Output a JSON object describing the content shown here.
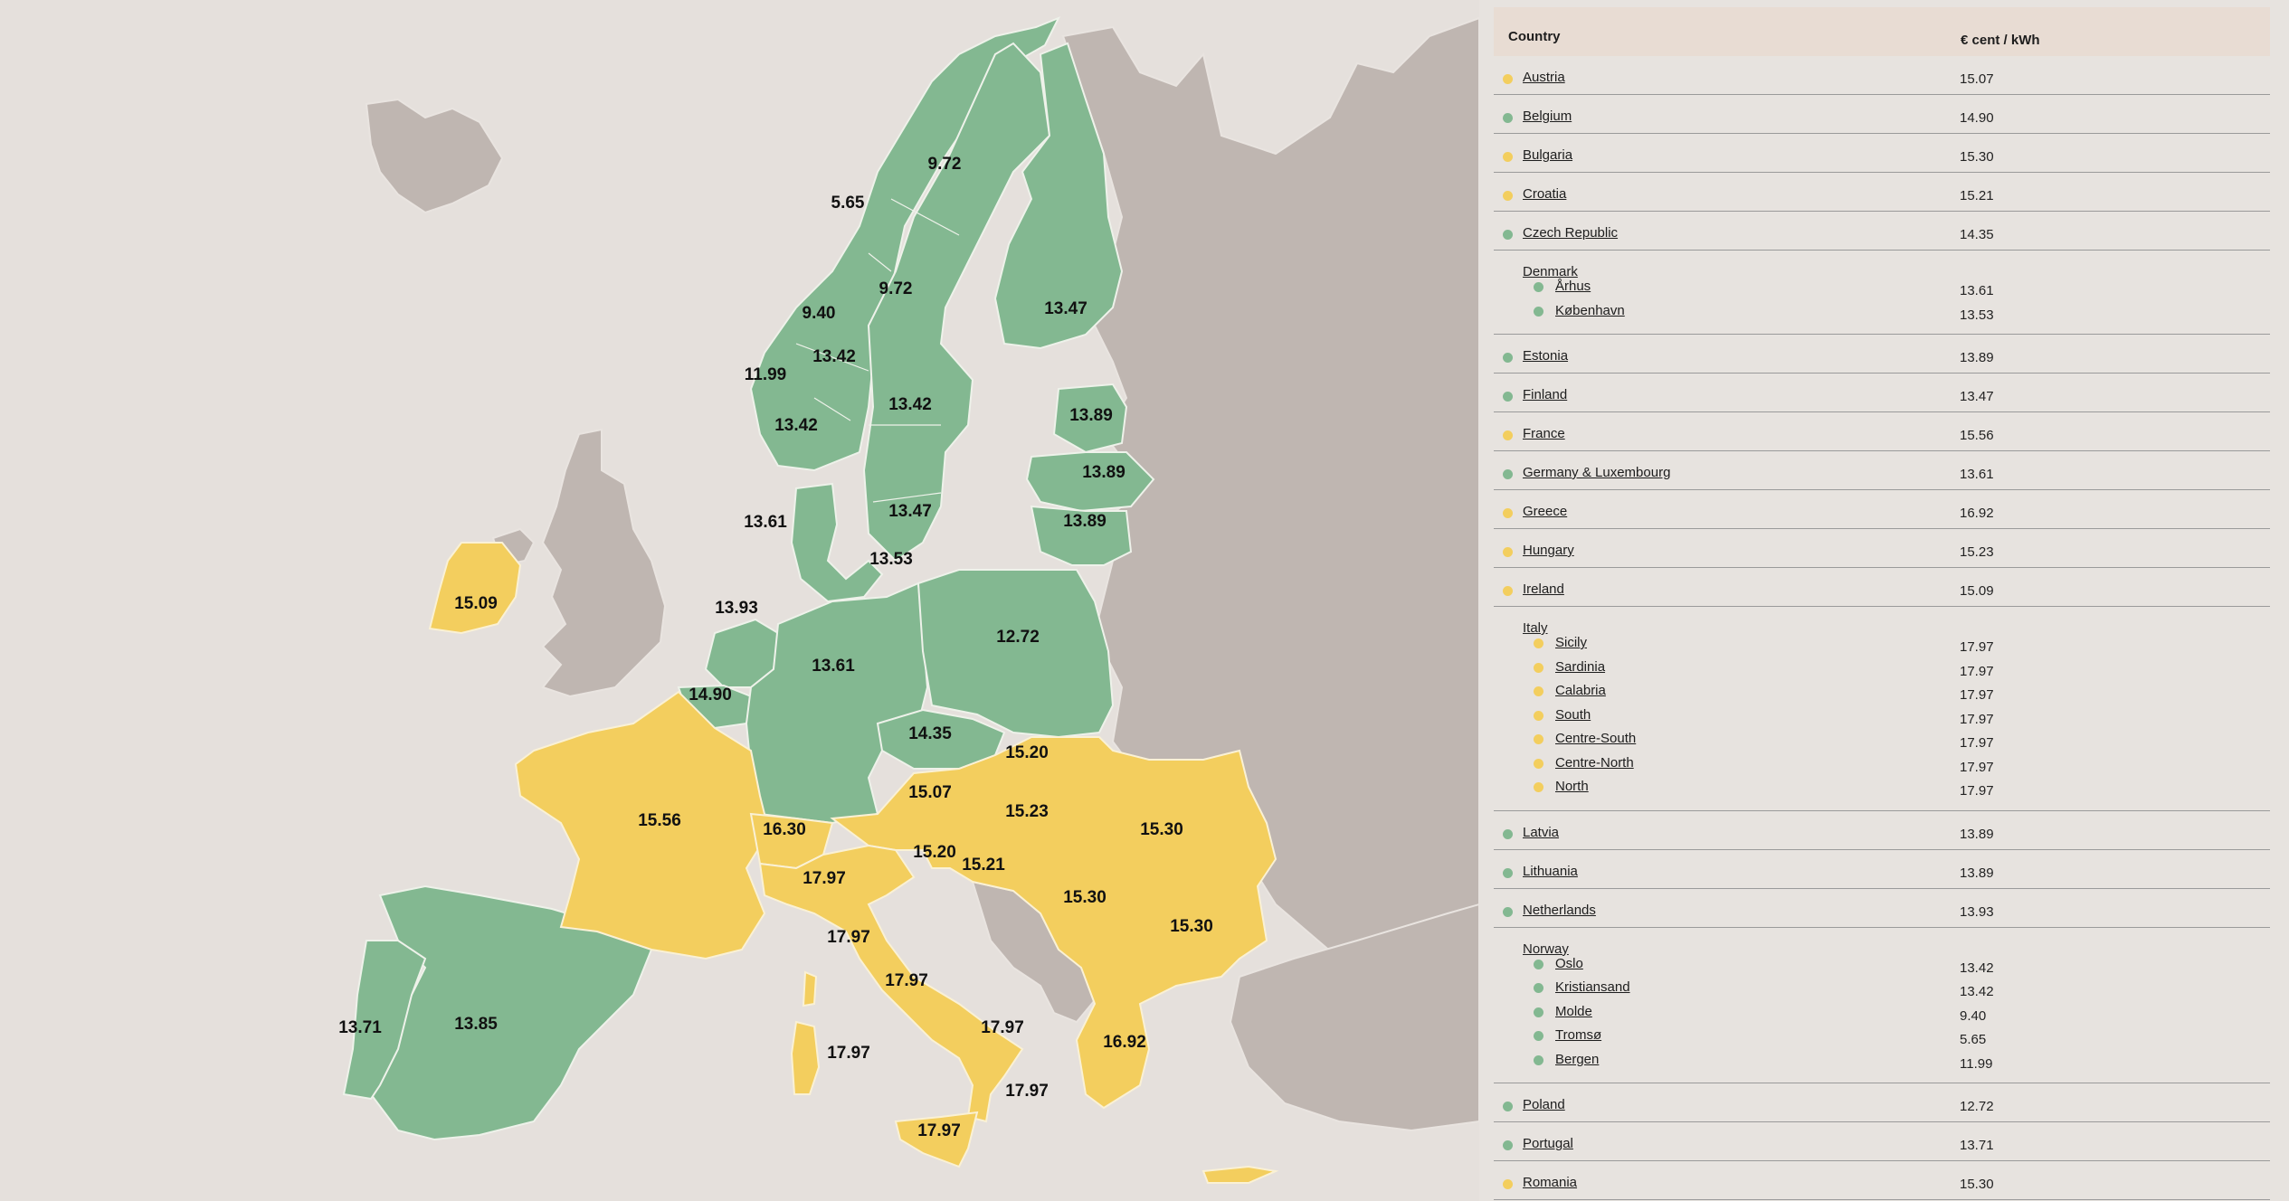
{
  "colors": {
    "green": "#83b891",
    "yellow": "#f3ce5e",
    "grey": "#bfb6b1",
    "sea": "#e5e0dc",
    "border": "#f4f1ee"
  },
  "map_labels": [
    {
      "id": "no-tromso",
      "text": "5.65",
      "k": "green"
    },
    {
      "id": "se-north",
      "text": "9.72",
      "k": "green"
    },
    {
      "id": "se-mid",
      "text": "9.72",
      "k": "green"
    },
    {
      "id": "no-molde",
      "text": "9.40",
      "k": "green"
    },
    {
      "id": "no-oslo",
      "text": "13.42",
      "k": "green"
    },
    {
      "id": "no-bergen",
      "text": "11.99",
      "k": "green"
    },
    {
      "id": "no-kristiansand",
      "text": "13.42",
      "k": "green"
    },
    {
      "id": "se-south3",
      "text": "13.42",
      "k": "green"
    },
    {
      "id": "finland",
      "text": "13.47",
      "k": "green"
    },
    {
      "id": "se-south4",
      "text": "13.47",
      "k": "green"
    },
    {
      "id": "estonia",
      "text": "13.89",
      "k": "green"
    },
    {
      "id": "latvia",
      "text": "13.89",
      "k": "green"
    },
    {
      "id": "lithuania",
      "text": "13.89",
      "k": "green"
    },
    {
      "id": "dk-west",
      "text": "13.61",
      "k": "green"
    },
    {
      "id": "dk-east",
      "text": "13.53",
      "k": "green"
    },
    {
      "id": "netherlands",
      "text": "13.93",
      "k": "green"
    },
    {
      "id": "ireland",
      "text": "15.09",
      "k": "yellow"
    },
    {
      "id": "germany",
      "text": "13.61",
      "k": "green"
    },
    {
      "id": "poland",
      "text": "12.72",
      "k": "green"
    },
    {
      "id": "belgium",
      "text": "14.90",
      "k": "green"
    },
    {
      "id": "czech",
      "text": "14.35",
      "k": "green"
    },
    {
      "id": "slovakia",
      "text": "15.20",
      "k": "yellow"
    },
    {
      "id": "austria",
      "text": "15.07",
      "k": "yellow"
    },
    {
      "id": "hungary",
      "text": "15.23",
      "k": "yellow"
    },
    {
      "id": "romania",
      "text": "15.30",
      "k": "yellow"
    },
    {
      "id": "france",
      "text": "15.56",
      "k": "yellow"
    },
    {
      "id": "switzerland",
      "text": "16.30",
      "k": "yellow"
    },
    {
      "id": "slovenia",
      "text": "15.20",
      "k": "yellow"
    },
    {
      "id": "croatia",
      "text": "15.21",
      "k": "yellow"
    },
    {
      "id": "it-north",
      "text": "17.97",
      "k": "yellow"
    },
    {
      "id": "serbia",
      "text": "15.30",
      "k": "yellow"
    },
    {
      "id": "bulgaria",
      "text": "15.30",
      "k": "yellow"
    },
    {
      "id": "it-centre-north",
      "text": "17.97",
      "k": "yellow"
    },
    {
      "id": "it-centre-south",
      "text": "17.97",
      "k": "yellow"
    },
    {
      "id": "greece",
      "text": "16.92",
      "k": "yellow"
    },
    {
      "id": "it-south",
      "text": "17.97",
      "k": "yellow"
    },
    {
      "id": "portugal",
      "text": "13.71",
      "k": "green"
    },
    {
      "id": "spain",
      "text": "13.85",
      "k": "green"
    },
    {
      "id": "it-sardinia",
      "text": "17.97",
      "k": "yellow"
    },
    {
      "id": "it-calabria",
      "text": "17.97",
      "k": "yellow"
    },
    {
      "id": "it-sicily",
      "text": "17.97",
      "k": "yellow"
    }
  ],
  "table": {
    "col_country": "Country",
    "col_price": "€ cent / kWh",
    "rows": [
      {
        "name": "Austria",
        "value": "15.07",
        "k": "yellow"
      },
      {
        "name": "Belgium",
        "value": "14.90",
        "k": "green"
      },
      {
        "name": "Bulgaria",
        "value": "15.30",
        "k": "yellow"
      },
      {
        "name": "Croatia",
        "value": "15.21",
        "k": "yellow"
      },
      {
        "name": "Czech Republic",
        "value": "14.35",
        "k": "green"
      },
      {
        "name": "Denmark",
        "sub": [
          {
            "name": "Århus",
            "value": "13.61",
            "k": "green"
          },
          {
            "name": "København",
            "value": "13.53",
            "k": "green"
          }
        ]
      },
      {
        "name": "Estonia",
        "value": "13.89",
        "k": "green"
      },
      {
        "name": "Finland",
        "value": "13.47",
        "k": "green"
      },
      {
        "name": "France",
        "value": "15.56",
        "k": "yellow"
      },
      {
        "name": "Germany & Luxembourg",
        "value": "13.61",
        "k": "green"
      },
      {
        "name": "Greece",
        "value": "16.92",
        "k": "yellow"
      },
      {
        "name": "Hungary",
        "value": "15.23",
        "k": "yellow"
      },
      {
        "name": "Ireland",
        "value": "15.09",
        "k": "yellow"
      },
      {
        "name": "Italy",
        "sub": [
          {
            "name": "Sicily",
            "value": "17.97",
            "k": "yellow"
          },
          {
            "name": "Sardinia",
            "value": "17.97",
            "k": "yellow"
          },
          {
            "name": "Calabria",
            "value": "17.97",
            "k": "yellow"
          },
          {
            "name": "South",
            "value": "17.97",
            "k": "yellow"
          },
          {
            "name": "Centre-South",
            "value": "17.97",
            "k": "yellow"
          },
          {
            "name": "Centre-North",
            "value": "17.97",
            "k": "yellow"
          },
          {
            "name": "North",
            "value": "17.97",
            "k": "yellow"
          }
        ]
      },
      {
        "name": "Latvia",
        "value": "13.89",
        "k": "green"
      },
      {
        "name": "Lithuania",
        "value": "13.89",
        "k": "green"
      },
      {
        "name": "Netherlands",
        "value": "13.93",
        "k": "green"
      },
      {
        "name": "Norway",
        "sub": [
          {
            "name": "Oslo",
            "value": "13.42",
            "k": "green"
          },
          {
            "name": "Kristiansand",
            "value": "13.42",
            "k": "green"
          },
          {
            "name": "Molde",
            "value": "9.40",
            "k": "green"
          },
          {
            "name": "Tromsø",
            "value": "5.65",
            "k": "green"
          },
          {
            "name": "Bergen",
            "value": "11.99",
            "k": "green"
          }
        ]
      },
      {
        "name": "Poland",
        "value": "12.72",
        "k": "green"
      },
      {
        "name": "Portugal",
        "value": "13.71",
        "k": "green"
      },
      {
        "name": "Romania",
        "value": "15.30",
        "k": "yellow"
      }
    ]
  }
}
